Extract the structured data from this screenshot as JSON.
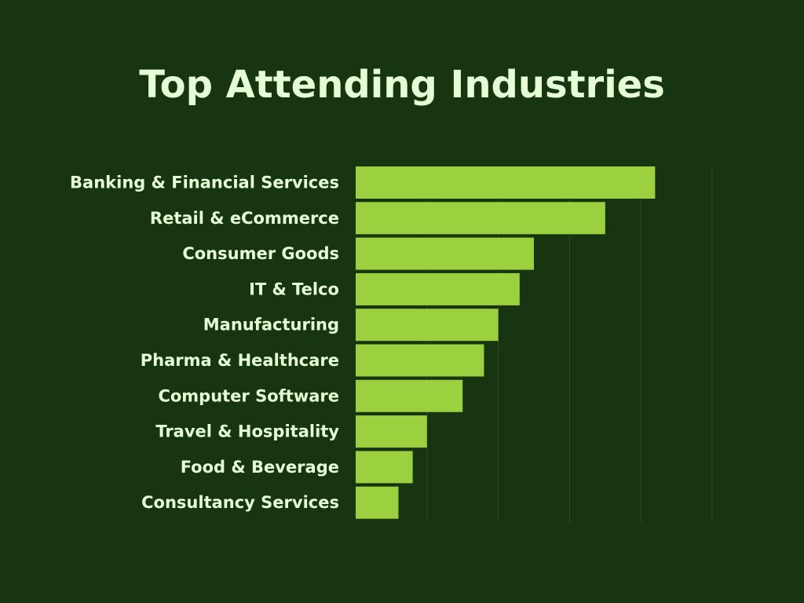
{
  "colors": {
    "background": "#163510",
    "bar": "#9bd13f",
    "text": "#e6ffd4",
    "gridline": "#2f4d28"
  },
  "chart_data": {
    "type": "bar",
    "orientation": "horizontal",
    "title": "Top Attending Industries",
    "xlabel": "",
    "ylabel": "",
    "categories": [
      "Banking & Financial Services",
      "Retail & eCommerce",
      "Consumer Goods",
      "IT & Telco",
      "Manufacturing",
      "Pharma & Healthcare",
      "Computer Software",
      "Travel & Hospitality",
      "Food & Beverage",
      "Consultancy Services"
    ],
    "values": [
      21,
      17.5,
      12.5,
      11.5,
      10,
      9,
      7.5,
      5,
      4,
      3
    ],
    "xlim": [
      0,
      25
    ],
    "grid": true,
    "legend": "none"
  }
}
